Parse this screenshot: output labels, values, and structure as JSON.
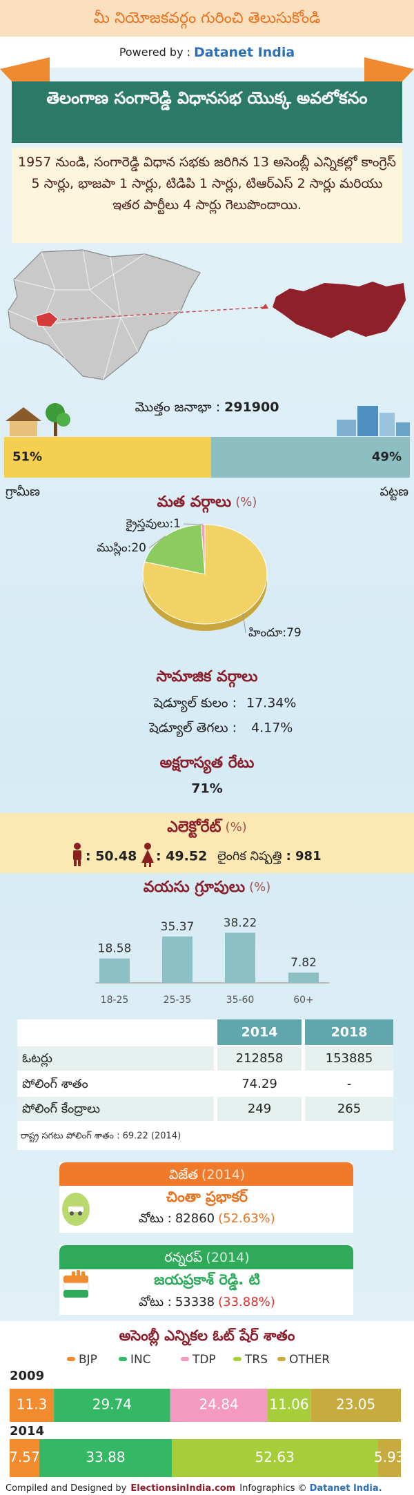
{
  "header": {
    "title": "మీ నియోజకవర్గం గురించి తెలుసుకోండి",
    "powered_by": "Powered by :",
    "brand": "Datanet India"
  },
  "banner": "తెలంగాణ సంగారెడ్డి విధానసభ యొక్క అవలోకనం",
  "summary": "1957 నుండి, సంగారెడ్డి విధాన సభకు జరిగిన 13 అసెంబ్లీ ఎన్నికల్లో కాంగ్రెస్ 5 సార్లు, భాజపా 1 సార్లు, టిడిపి 1 సార్లు, టిఆర్ఎస్ 2 సార్లు మరియు ఇతర పార్టీలు 4 సార్లు గెలుపొందాయి.",
  "population": {
    "label": "మొత్తం జనాభా :",
    "value": "291900"
  },
  "chart_data": [
    {
      "type": "stacked_bar",
      "categories": [
        "గ్రామీణ",
        "పట్టణ"
      ],
      "values": [
        51,
        49
      ],
      "value_labels": [
        "51%",
        "49%"
      ],
      "colors": [
        "#f5cf4f",
        "#8dbfc2"
      ]
    },
    {
      "type": "pie",
      "title": "మత వర్గాలు",
      "unit": "(%)",
      "categories": [
        "క్రైస్తవులు",
        "ముస్లిం",
        "హిందూ"
      ],
      "values": [
        1,
        20,
        79
      ],
      "separator": ":",
      "colors": [
        "#f2a0b8",
        "#8ccb5e",
        "#f2d264"
      ]
    },
    {
      "type": "bar",
      "title": "వయసు గ్రూపులు",
      "unit": "(%)",
      "categories": [
        "18-25",
        "25-35",
        "35-60",
        "60+"
      ],
      "values": [
        18.58,
        35.37,
        38.22,
        7.82
      ],
      "color": "#8cc0c4"
    },
    {
      "type": "stacked_bar",
      "title": "అసెంబ్లీ ఎన్నికల ఓట్ షేర్ శాతం",
      "categories": [
        "2009",
        "2014"
      ],
      "legend": "top",
      "series": [
        {
          "name": "BJP",
          "color": "#f28a2e",
          "values": [
            11.3,
            7.57
          ]
        },
        {
          "name": "INC",
          "color": "#35b865",
          "values": [
            29.74,
            33.88
          ]
        },
        {
          "name": "TDP",
          "color": "#f49ac1",
          "values": [
            24.84,
            null
          ]
        },
        {
          "name": "TRS",
          "color": "#a5ce3a",
          "values": [
            11.06,
            52.63
          ]
        },
        {
          "name": "OTHER",
          "color": "#c7ab3f",
          "values": [
            23.05,
            5.93
          ]
        }
      ]
    }
  ],
  "social": {
    "title": "సామాజిక వర్గాలు",
    "rows": [
      [
        "షెడ్యూల్ కులం :",
        "17.34%"
      ],
      [
        "షెడ్యూల్ తెగలు :",
        "4.17%"
      ]
    ]
  },
  "literacy": {
    "title": "అక్షరాస్యత రేటు",
    "value": "71%"
  },
  "electorate": {
    "title": "ఎలెక్టోరేట్",
    "unit": "(%)",
    "male": ": 50.48",
    "female": ": 49.52",
    "sex_ratio_label": "లైంగిక నిష్పత్తి",
    "sex_ratio": ": 981"
  },
  "table": {
    "columns": [
      "2014",
      "2018"
    ],
    "rows": [
      [
        "ఓటర్లు",
        "212858",
        "153885"
      ],
      [
        "పోలింగ్ శాతం",
        "74.29",
        "-"
      ],
      [
        "పోలింగ్ కేంద్రాలు",
        "249",
        "265"
      ]
    ],
    "note": "రాష్ట్ర సగటు పోలింగ్ శాతం : 69.22 (2014)"
  },
  "winner": {
    "title": "విజేత",
    "year": "(2014)",
    "name": "చింతా ప్రభాకర్",
    "votes_label": "వోటు :",
    "votes": "82860",
    "share": "(52.63%)"
  },
  "runner_up": {
    "title": "రన్నరప్",
    "year": "(2014)",
    "name": "జయప్రకాశ్ రెడ్డి. టి",
    "votes_label": "వోటు :",
    "votes": "53338",
    "share": "(33.88%)"
  },
  "footer": {
    "credit": "Compiled and Designed by",
    "site": "ElectionsinIndia.com",
    "infographics": "Infographics ©",
    "brand": "Datanet India."
  }
}
